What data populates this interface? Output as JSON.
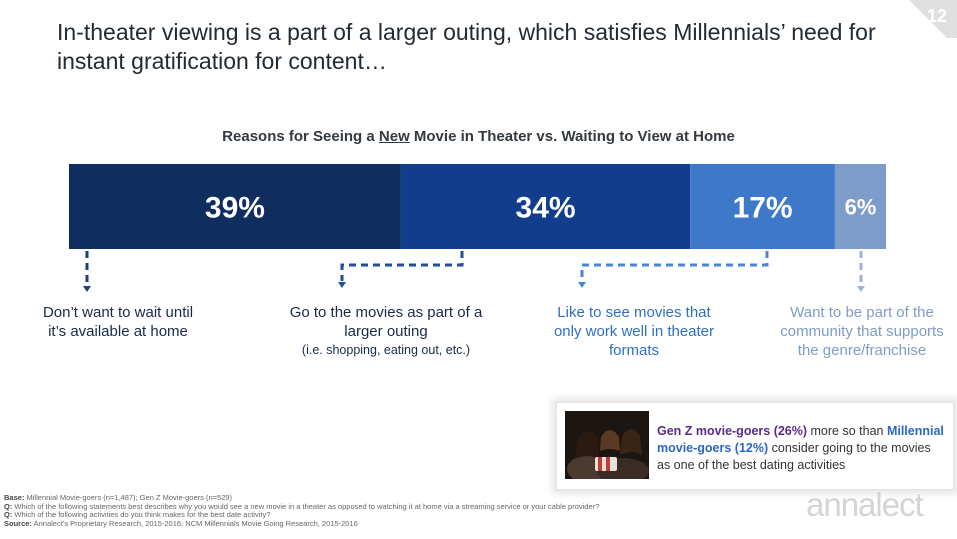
{
  "page_number": "12",
  "headline": "In-theater viewing is a part of a larger outing, which satisfies Millennials’ need for instant gratification for content…",
  "chart_data": {
    "type": "bar",
    "title_pre": "Reasons for Seeing a ",
    "title_underlined": "New",
    "title_post": " Movie in Theater vs. Waiting to View at Home",
    "orientation": "horizontal-stacked",
    "categories": [
      "Don’t want to wait until it’s available at home",
      "Go to the movies as part of a larger outing",
      "Like to see movies that only work well in theater formats",
      "Want to be part of the community that supports the genre/franchise"
    ],
    "values": [
      39,
      34,
      17,
      6
    ],
    "labels": [
      "39%",
      "34%",
      "17%",
      "6%"
    ],
    "colors": [
      "#0f2d5e",
      "#123d8c",
      "#3d78c9",
      "#7e9cc9"
    ]
  },
  "reasons": [
    {
      "main": "Don’t want to wait until it’s available at home",
      "sub": "",
      "color": "#1a2a4a"
    },
    {
      "main": "Go to the movies as part of a larger outing",
      "sub": "(i.e. shopping, eating out, etc.)",
      "color": "#1a2a4a"
    },
    {
      "main": "Like to see movies that only work well in theater formats",
      "sub": "",
      "color": "#2f6fc2"
    },
    {
      "main": "Want to be part of the community that supports the genre/franchise",
      "sub": "",
      "color": "#7e9cc9"
    }
  ],
  "callout": {
    "genz": "Gen Z movie-goers (26%)",
    "text1": " more so than ",
    "millennial": "Millennial movie-goers (12%)",
    "text2": " consider going to the movies as one of the best dating activities"
  },
  "footnotes": {
    "base_label": "Base:",
    "base": " Millennial Movie-goers (n=1,487); Gen Z Movie-goers (n=529)",
    "q1_label": "Q:",
    "q1": " Which of the following statements best describes why you would see a new movie in a theater as opposed to watching it at home via a streaming service or your cable provider?",
    "q2_label": "Q:",
    "q2": " Which of the following activities do you think makes for the best date activity?",
    "source_label": "Source:",
    "source": " Annalect’s Proprietary Research, 2015-2016; NCM Millennials Movie Going Research, 2015-2016"
  },
  "logo": "annalect"
}
